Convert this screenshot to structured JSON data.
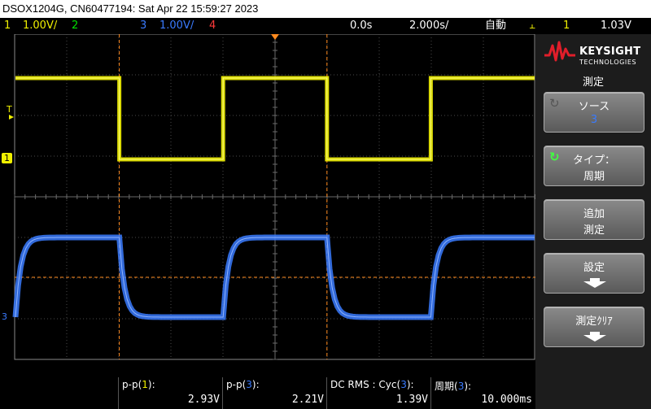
{
  "title": "DSOX1204G, CN60477194: Sat Apr 22 15:59:27 2023",
  "status": {
    "ch1_num": "1",
    "ch1_scale": "1.00V/",
    "ch2_num": "2",
    "ch3_num": "3",
    "ch3_scale": "1.00V/",
    "ch4_num": "4",
    "time_delay": "0.0s",
    "time_scale": "2.000s/",
    "trigger_mode": "自動",
    "trigger_source": "1",
    "trigger_level": "1.03V"
  },
  "markers": {
    "trigger_marker": "T",
    "ch1_marker": "1",
    "ch3_marker": "3"
  },
  "colors": {
    "ch1": "#f0f000",
    "ch2": "#00e000",
    "ch3": "#3a7bff",
    "ch4": "#ff3a3a",
    "cursor": "#ff8a1e"
  },
  "chart_data": {
    "type": "line",
    "series": [
      {
        "channel": "1",
        "x": [
          0,
          2,
          2,
          4,
          4,
          6,
          6,
          8,
          8,
          10
        ],
        "y": [
          1,
          1,
          0,
          0,
          1,
          1,
          0,
          0,
          1,
          1
        ]
      },
      {
        "channel": "3",
        "x": [
          0,
          2,
          4,
          6,
          8,
          10
        ],
        "y": [
          1,
          0,
          1,
          0,
          1,
          0
        ]
      }
    ]
  },
  "sidebar": {
    "logo_word": "KEYSIGHT",
    "logo_sub": "TECHNOLOGIES",
    "menu_title": "測定",
    "softkeys": [
      {
        "line1": "ソース",
        "line2": "3"
      },
      {
        "line1": "タイプ：",
        "line2": "周期"
      },
      {
        "line1": "追加",
        "line2": "測定"
      },
      {
        "line1": "設定",
        "line2": ""
      },
      {
        "line1": "測定ｸﾘｱ",
        "line2": ""
      }
    ]
  },
  "measurements": [
    {
      "label_pre": "p-p(",
      "label_ch": "1",
      "label_post": "):",
      "value": "2.93V"
    },
    {
      "label_pre": "p-p(",
      "label_ch": "3",
      "label_post": "):",
      "value": "2.21V"
    },
    {
      "label_pre": "DC RMS : Cyc(",
      "label_ch": "3",
      "label_post": "):",
      "value": "1.39V"
    },
    {
      "label_pre": "周期(",
      "label_ch": "3",
      "label_post": "):",
      "value": "10.000ms"
    }
  ]
}
